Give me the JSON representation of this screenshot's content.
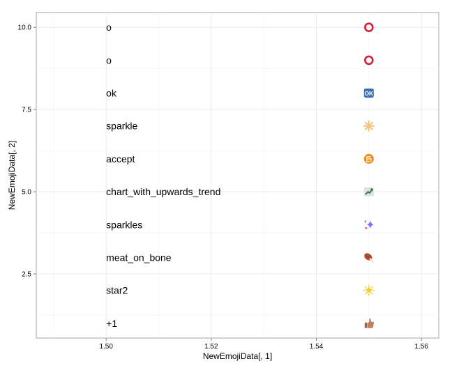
{
  "chart_data": {
    "type": "scatter",
    "xlabel": "NewEmojiData[, 1]",
    "ylabel": "NewEmojiData[, 2]",
    "xlim": [
      1.4867,
      1.5633
    ],
    "ylim": [
      0.55,
      10.45
    ],
    "x_ticks": [
      1.5,
      1.52,
      1.54,
      1.56
    ],
    "x_tick_labels": [
      "1.50",
      "1.52",
      "1.54",
      "1.56"
    ],
    "y_ticks": [
      2.5,
      5.0,
      7.5,
      10.0
    ],
    "y_tick_labels": [
      "2.5",
      "5.0",
      "7.5",
      "10.0"
    ],
    "grid": true,
    "text_x": 1.5,
    "icon_x": 1.55,
    "points": [
      {
        "y": 10,
        "label": "o",
        "icon": "heavy-large-circle-icon",
        "color": "#d0203a"
      },
      {
        "y": 9,
        "label": "o",
        "icon": "heavy-large-circle-icon",
        "color": "#d0203a"
      },
      {
        "y": 8,
        "label": "ok",
        "icon": "ok-button-icon",
        "color": "#3a6fb0"
      },
      {
        "y": 7,
        "label": "sparkle",
        "icon": "sparkle-icon",
        "color": "#f5c27a"
      },
      {
        "y": 6,
        "label": "accept",
        "icon": "accept-icon",
        "color": "#f08a1c"
      },
      {
        "y": 5,
        "label": "chart_with_upwards_trend",
        "icon": "chart-with-upwards-trend-icon",
        "color": "#3a7a3a"
      },
      {
        "y": 4,
        "label": "sparkles",
        "icon": "sparkles-icon",
        "color": "#8a6ff0"
      },
      {
        "y": 3,
        "label": "meat_on_bone",
        "icon": "meat-on-bone-icon",
        "color": "#b0482a"
      },
      {
        "y": 2,
        "label": "star2",
        "icon": "glowing-star-icon",
        "color": "#f5c92a"
      },
      {
        "y": 1,
        "label": "+1",
        "icon": "thumbs-up-icon",
        "color": "#c08060"
      }
    ]
  }
}
